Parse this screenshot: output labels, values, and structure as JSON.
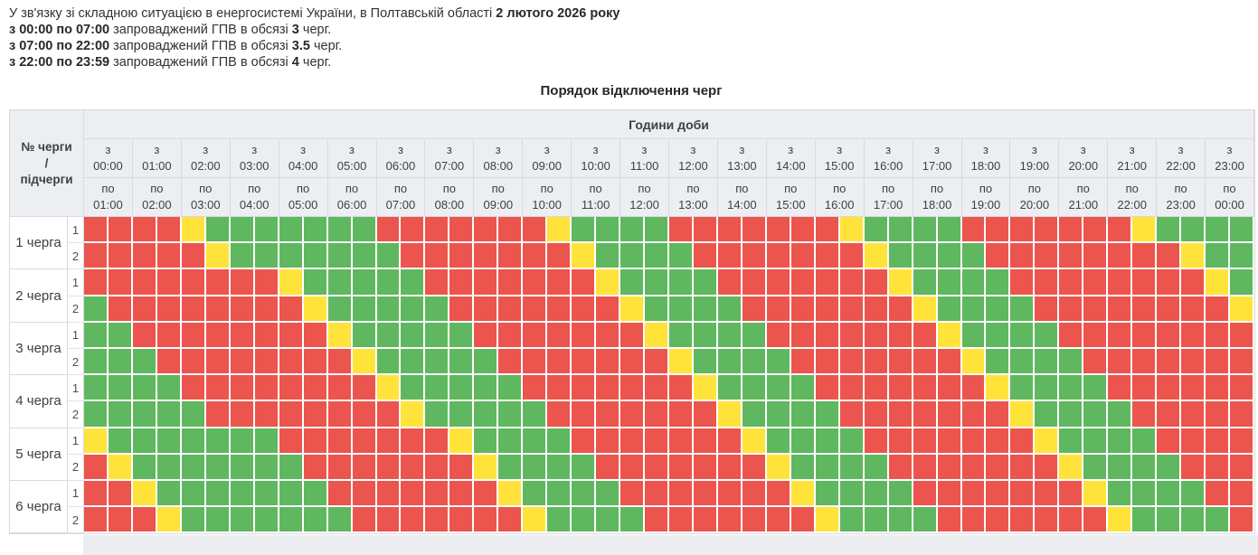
{
  "intro": {
    "lines": [
      {
        "segments": [
          {
            "text": "У зв'язку зі складною ситуацією в енергосистемі України, в Полтавській області ",
            "bold": false
          },
          {
            "text": "2 лютого 2026 року",
            "bold": true
          }
        ]
      },
      {
        "segments": [
          {
            "text": "з 00:00 по 07:00",
            "bold": true
          },
          {
            "text": " запроваджений ГПВ в обсязі ",
            "bold": false
          },
          {
            "text": "3",
            "bold": true
          },
          {
            "text": " черг.",
            "bold": false
          }
        ]
      },
      {
        "segments": [
          {
            "text": "з 07:00 по 22:00",
            "bold": true
          },
          {
            "text": " запроваджений ГПВ в обсязі ",
            "bold": false
          },
          {
            "text": "3.5",
            "bold": true
          },
          {
            "text": " черг.",
            "bold": false
          }
        ]
      },
      {
        "segments": [
          {
            "text": "з 22:00 по 23:59",
            "bold": true
          },
          {
            "text": " запроваджений ГПВ в обсязі ",
            "bold": false
          },
          {
            "text": "4",
            "bold": true
          },
          {
            "text": " черг.",
            "bold": false
          }
        ]
      }
    ]
  },
  "title": "Порядок відключення черг",
  "colors": {
    "red": "#ec544e",
    "yellow": "#ffe33b",
    "green": "#5fb75f",
    "header_bg": "#eceef2",
    "border": "#d7dade"
  },
  "table": {
    "corner_lines": [
      "№ черги",
      "/",
      "підчерги"
    ],
    "hours_group_label": "Години доби",
    "from_prefix": "з",
    "to_prefix": "по",
    "columns": [
      {
        "from": "00:00",
        "to": "01:00"
      },
      {
        "from": "01:00",
        "to": "02:00"
      },
      {
        "from": "02:00",
        "to": "03:00"
      },
      {
        "from": "03:00",
        "to": "04:00"
      },
      {
        "from": "04:00",
        "to": "05:00"
      },
      {
        "from": "05:00",
        "to": "06:00"
      },
      {
        "from": "06:00",
        "to": "07:00"
      },
      {
        "from": "07:00",
        "to": "08:00"
      },
      {
        "from": "08:00",
        "to": "09:00"
      },
      {
        "from": "09:00",
        "to": "10:00"
      },
      {
        "from": "10:00",
        "to": "11:00"
      },
      {
        "from": "11:00",
        "to": "12:00"
      },
      {
        "from": "12:00",
        "to": "13:00"
      },
      {
        "from": "13:00",
        "to": "14:00"
      },
      {
        "from": "14:00",
        "to": "15:00"
      },
      {
        "from": "15:00",
        "to": "16:00"
      },
      {
        "from": "16:00",
        "to": "17:00"
      },
      {
        "from": "17:00",
        "to": "18:00"
      },
      {
        "from": "18:00",
        "to": "19:00"
      },
      {
        "from": "19:00",
        "to": "20:00"
      },
      {
        "from": "20:00",
        "to": "21:00"
      },
      {
        "from": "21:00",
        "to": "22:00"
      },
      {
        "from": "22:00",
        "to": "23:00"
      },
      {
        "from": "23:00",
        "to": "00:00"
      }
    ],
    "cell_legend": {
      "R": "red",
      "Y": "yellow",
      "G": "green"
    },
    "queues": [
      {
        "label": "1 черга",
        "subqueues": [
          {
            "label": "1",
            "cells": "RRRRYGGGGGGGRRRRRRRYGGGGRRRRRRRYGGGGRRRRRRRYGGGG"
          },
          {
            "label": "2",
            "cells": "RRRRRYGGGGGGGRRRRRRRYGGGGRRRRRRRYGGGGRRRRRRRRYGG"
          }
        ]
      },
      {
        "label": "2 черга",
        "subqueues": [
          {
            "label": "1",
            "cells": "RRRRRRRRYGGGGGRRRRRRRYGGGGRRRRRRRYGGGGRRRRRRRRYG"
          },
          {
            "label": "2",
            "cells": "GRRRRRRRRYGGGGGRRRRRRRYGGGGRRRRRRRYGGGGRRRRRRRRY"
          }
        ]
      },
      {
        "label": "3 черга",
        "subqueues": [
          {
            "label": "1",
            "cells": "GGRRRRRRRRYGGGGGRRRRRRRYGGGGRRRRRRRYGGGGRRRRRRRR"
          },
          {
            "label": "2",
            "cells": "GGGRRRRRRRRYGGGGGRRRRRRRYGGGGRRRRRRRYGGGGRRRRRRR"
          }
        ]
      },
      {
        "label": "4 черга",
        "subqueues": [
          {
            "label": "1",
            "cells": "GGGGRRRRRRRRYGGGGGRRRRRRRYGGGGRRRRRRRYGGGGRRRRRR"
          },
          {
            "label": "2",
            "cells": "GGGGGRRRRRRRRYGGGGGRRRRRRRYGGGGRRRRRRRYGGGGRRRRR"
          }
        ]
      },
      {
        "label": "5 черга",
        "subqueues": [
          {
            "label": "1",
            "cells": "YGGGGGGGRRRRRRRYGGGGRRRRRRRYGGGGRRRRRRRYGGGGRRRR"
          },
          {
            "label": "2",
            "cells": "RYGGGGGGGRRRRRRRYGGGGRRRRRRRYGGGGRRRRRRRYGGGGRRR"
          }
        ]
      },
      {
        "label": "6 черга",
        "subqueues": [
          {
            "label": "1",
            "cells": "RRYGGGGGGGRRRRRRRYGGGGRRRRRRRYGGGGRRRRRRRYGGGGRR"
          },
          {
            "label": "2",
            "cells": "RRRYGGGGGGGRRRRRRRYGGGGRRRRRRRYGGGGRRRRRRRYGGGGR"
          }
        ]
      }
    ]
  }
}
